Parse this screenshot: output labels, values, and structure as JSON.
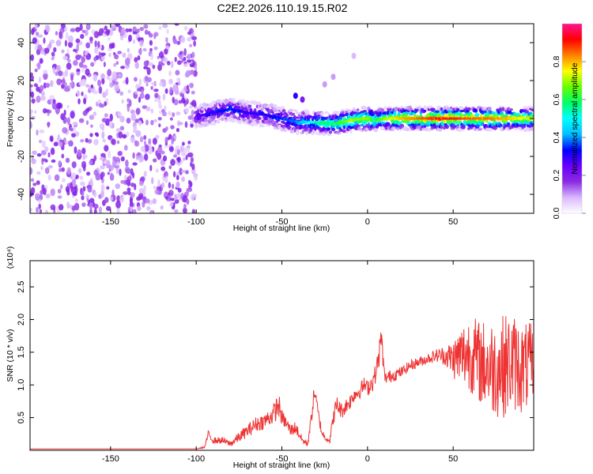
{
  "figure": {
    "title": "C2E2.2026.110.19.15.R02"
  },
  "chart_data": [
    {
      "type": "heatmap",
      "name": "spectrogram",
      "xlabel": "Height of straight line (km)",
      "ylabel": "Frequency (Hz)",
      "xlim": [
        -197,
        97
      ],
      "ylim": [
        -50,
        50
      ],
      "xticks": [
        -150,
        -100,
        -50,
        0,
        50
      ],
      "yticks": [
        -40,
        -20,
        0,
        20,
        40
      ],
      "colorbar": {
        "label": "Normalized spectral amplitude",
        "range": [
          0,
          1
        ],
        "ticks": [
          0.0,
          0.2,
          0.4,
          0.6,
          0.8
        ],
        "tick_labels": [
          "0.0",
          "0.2",
          "0.4",
          "0.6",
          "0.8"
        ],
        "colormap": [
          "#ffffff",
          "#d9b8ff",
          "#8a2be2",
          "#6a00ff",
          "#0000ff",
          "#00bfff",
          "#00ffff",
          "#00ff66",
          "#66ff00",
          "#ffff00",
          "#ff8000",
          "#ff0000",
          "#ff1493"
        ]
      },
      "noise_region": {
        "x": [
          -197,
          -100
        ],
        "y": [
          -50,
          50
        ],
        "amplitude": [
          0.05,
          0.2
        ]
      },
      "signal_ridge": {
        "x": [
          -100,
          -90,
          -80,
          -70,
          -60,
          -50,
          -40,
          -30,
          -20,
          -15,
          -10,
          0,
          5,
          10,
          20,
          30,
          40,
          50,
          60,
          70,
          80,
          90,
          97
        ],
        "freq": [
          1,
          3,
          5,
          3,
          2,
          0,
          -2,
          -2,
          -3,
          -2,
          -1,
          0,
          -1,
          0,
          0,
          0,
          0,
          0,
          0,
          0,
          0,
          0,
          0
        ],
        "peak_amplitude": [
          0.25,
          0.3,
          0.35,
          0.3,
          0.3,
          0.35,
          0.4,
          0.55,
          0.6,
          0.65,
          0.7,
          0.7,
          0.6,
          0.7,
          0.8,
          0.85,
          0.9,
          0.9,
          0.85,
          0.85,
          0.8,
          0.75,
          0.7
        ]
      },
      "secondary_features": [
        {
          "x": -42,
          "freq": 12,
          "amplitude": 0.3
        },
        {
          "x": -38,
          "freq": 10,
          "amplitude": 0.2
        },
        {
          "x": -25,
          "freq": 18,
          "amplitude": 0.1
        },
        {
          "x": -20,
          "freq": 22,
          "amplitude": 0.1
        },
        {
          "x": -8,
          "freq": 33,
          "amplitude": 0.08
        }
      ]
    },
    {
      "type": "line",
      "name": "snr",
      "xlabel": "Height of straight line (km)",
      "ylabel": "SNR (10 * v/v)",
      "yscale_label": "(x10⁴)",
      "xlim": [
        -197,
        97
      ],
      "ylim": [
        0,
        2.9
      ],
      "xticks": [
        -150,
        -100,
        -50,
        0,
        50
      ],
      "yticks": [
        0.5,
        1.0,
        1.5,
        2.0,
        2.5
      ],
      "ytick_labels": [
        "0.5",
        "1.0",
        "1.5",
        "2.0",
        "2.5"
      ],
      "series": [
        {
          "name": "SNR",
          "color": "#ee3333",
          "x": [
            -197,
            -100,
            -95,
            -93,
            -90,
            -85,
            -80,
            -75,
            -70,
            -65,
            -60,
            -55,
            -52,
            -50,
            -47,
            -45,
            -42,
            -40,
            -38,
            -35,
            -33,
            -31,
            -29,
            -27,
            -25,
            -22,
            -20,
            -18,
            -15,
            -12,
            -10,
            -8,
            -5,
            -2,
            0,
            3,
            5,
            7,
            8,
            10,
            15,
            20,
            25,
            30,
            35,
            40,
            45,
            50,
            55,
            60,
            65,
            70,
            75,
            80,
            85,
            90,
            95,
            97
          ],
          "y": [
            0.02,
            0.02,
            0.05,
            0.25,
            0.15,
            0.15,
            0.1,
            0.2,
            0.3,
            0.4,
            0.45,
            0.55,
            0.7,
            0.5,
            0.4,
            0.3,
            0.35,
            0.25,
            0.15,
            0.1,
            0.45,
            0.9,
            0.6,
            0.3,
            0.2,
            0.15,
            0.5,
            0.7,
            0.6,
            0.7,
            0.75,
            0.85,
            0.9,
            1.0,
            0.95,
            1.05,
            1.2,
            1.5,
            1.75,
            1.1,
            1.15,
            1.2,
            1.3,
            1.35,
            1.4,
            1.45,
            1.45,
            1.4,
            1.45,
            1.5,
            1.35,
            1.3,
            1.25,
            1.3,
            1.35,
            1.25,
            1.3,
            1.3
          ],
          "envelope_spread": [
            0,
            0,
            0.02,
            0.05,
            0.05,
            0.05,
            0.05,
            0.08,
            0.1,
            0.12,
            0.12,
            0.15,
            0.2,
            0.12,
            0.1,
            0.1,
            0.1,
            0.08,
            0.05,
            0.05,
            0.1,
            0.15,
            0.1,
            0.08,
            0.05,
            0.05,
            0.12,
            0.15,
            0.12,
            0.12,
            0.12,
            0.12,
            0.12,
            0.12,
            0.12,
            0.15,
            0.15,
            0.2,
            0.2,
            0.1,
            0.1,
            0.08,
            0.08,
            0.08,
            0.08,
            0.1,
            0.15,
            0.3,
            0.5,
            0.6,
            0.65,
            0.7,
            0.75,
            0.8,
            0.75,
            0.7,
            0.65,
            0.6
          ]
        }
      ]
    }
  ]
}
